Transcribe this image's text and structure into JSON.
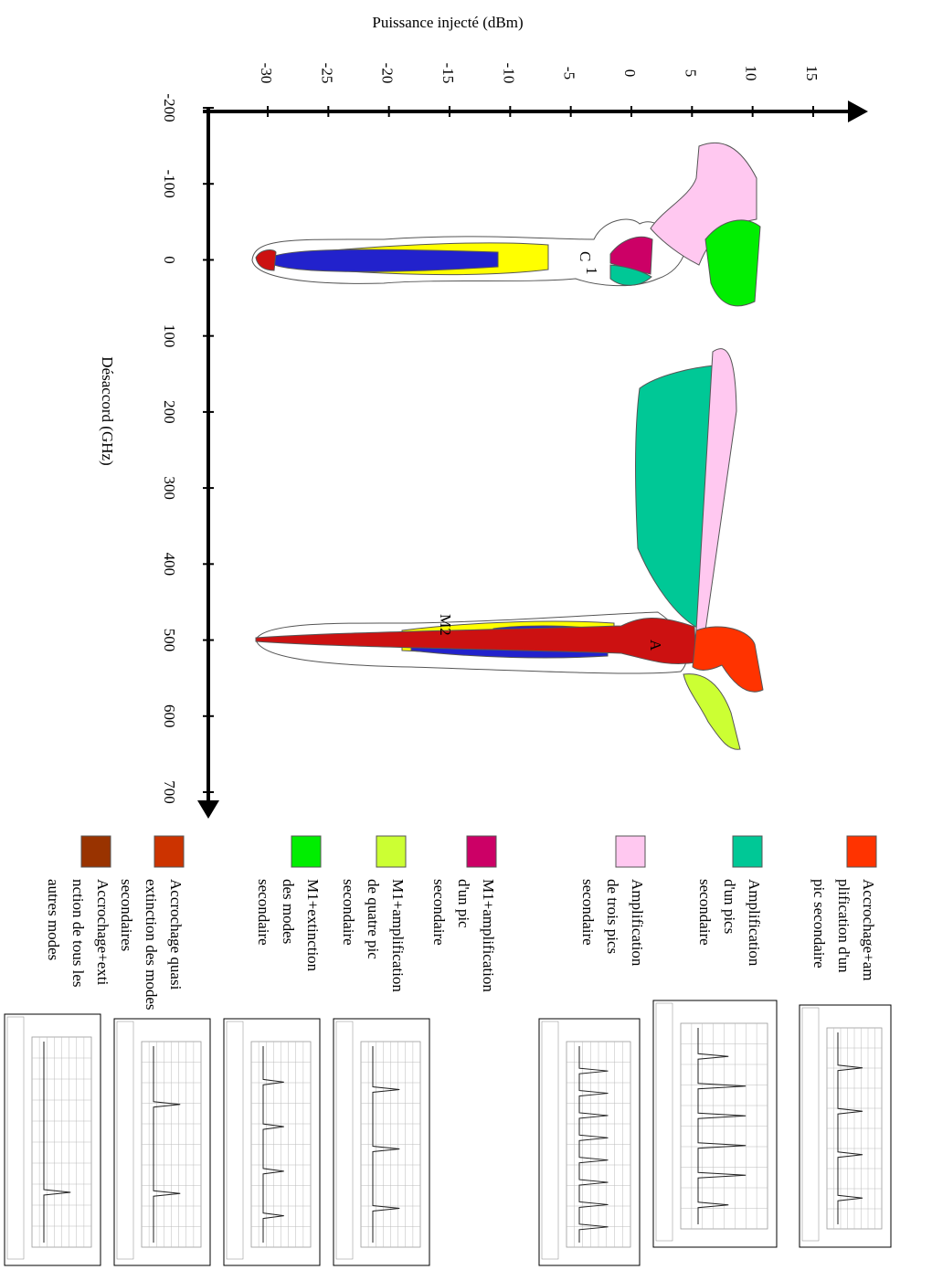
{
  "chart_data": {
    "type": "region",
    "x_label": "Désaccord (GHz)",
    "y_label": "Puissance injecté (dBm)",
    "xlim": [
      -200,
      700
    ],
    "xticks": [
      -200,
      -100,
      0,
      100,
      200,
      300,
      400,
      500,
      600,
      700
    ],
    "ylim": [
      -30,
      15
    ],
    "yticks": [
      -30,
      -25,
      -20,
      -15,
      -10,
      -5,
      0,
      5,
      10,
      15
    ],
    "annotations": [
      "C",
      "1",
      "M2",
      "A"
    ],
    "legend": [
      {
        "color": "#ff3300",
        "label": [
          "Accrochage+am",
          "plification d'un",
          "pic secondaire"
        ]
      },
      {
        "color": "#00c896",
        "label": [
          "Amplification",
          "d'un pics",
          "secondaire"
        ]
      },
      {
        "color": "#ffc8f0",
        "label": [
          "Amplification",
          "de trois pics",
          "secondaire"
        ]
      },
      {
        "color": "#cc0066",
        "label": [
          "M1+amplification",
          "d'un pic",
          "secondaire"
        ]
      },
      {
        "color": "#ccff33",
        "label": [
          "M1+amplification",
          "de quatre pic",
          "secondaire"
        ]
      },
      {
        "color": "#00ee00",
        "label": [
          "M1+extinction",
          "des modes",
          "secondaire"
        ]
      },
      {
        "color": "#cc3300",
        "label": [
          "Accrochage quasi",
          "extinction des modes",
          "secondaires"
        ]
      },
      {
        "color": "#993300",
        "label": [
          "Accrochage+exti",
          "nction de tous les",
          "autres modes"
        ]
      }
    ]
  }
}
